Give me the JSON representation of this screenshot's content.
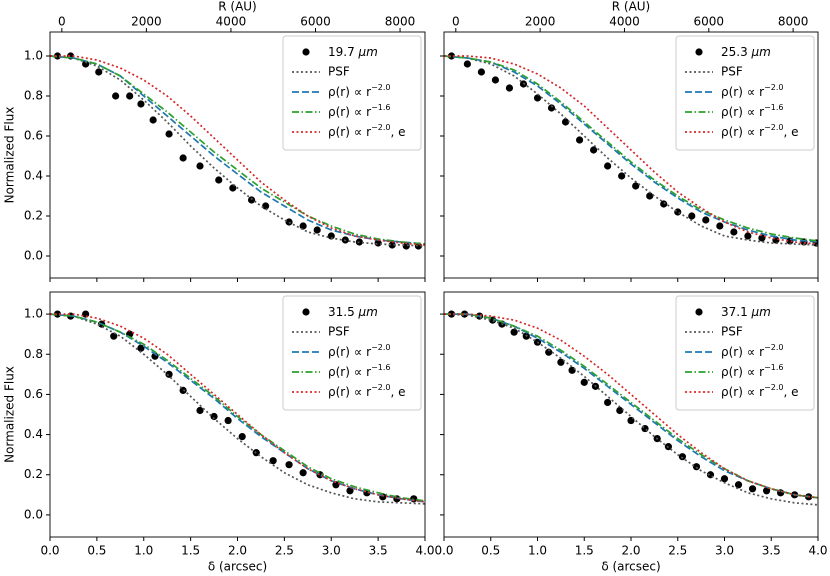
{
  "chart_data": [
    {
      "type": "line",
      "x2label": "R (AU)",
      "ylabel": "Normalized Flux",
      "ytick_labels": true,
      "xtick_labels": false,
      "xlim": [
        0,
        4
      ],
      "ylim": [
        -0.11,
        1.12
      ],
      "x2lim": [
        -280,
        8590
      ],
      "xticks": [
        {
          "value": 0,
          "label": "0.0"
        },
        0.5,
        {
          "value": 1,
          "label": "1.0"
        },
        1.5,
        {
          "value": 2,
          "label": "2.0"
        },
        2.5,
        {
          "value": 3,
          "label": "3.0"
        },
        3.5,
        {
          "value": 4,
          "label": "4.0"
        }
      ],
      "yticks": [
        {
          "value": 0,
          "label": "0.0"
        },
        0.2,
        0.4,
        0.6,
        0.8,
        {
          "value": 1,
          "label": "1.0"
        }
      ],
      "x2ticks": [
        0,
        2000,
        4000,
        6000,
        8000
      ],
      "x": [
        0,
        0.25,
        0.5,
        0.75,
        1,
        1.25,
        1.5,
        1.75,
        2,
        2.25,
        2.5,
        2.75,
        3,
        3.25,
        3.5,
        3.75,
        4
      ],
      "series": [
        {
          "name": {
            "text": "19.7 ",
            "unit": "μm"
          },
          "color": "#000000",
          "style": "points",
          "x": [
            0.08,
            0.22,
            0.38,
            0.52,
            0.7,
            0.85,
            0.97,
            1.1,
            1.27,
            1.42,
            1.6,
            1.8,
            1.95,
            2.15,
            2.3,
            2.55,
            2.7,
            2.85,
            3.0,
            3.15,
            3.3,
            3.5,
            3.65,
            3.8,
            3.93
          ],
          "values": [
            1.0,
            1.0,
            0.96,
            0.92,
            0.8,
            0.8,
            0.76,
            0.68,
            0.61,
            0.49,
            0.45,
            0.38,
            0.34,
            0.28,
            0.25,
            0.17,
            0.15,
            0.13,
            0.1,
            0.08,
            0.07,
            0.065,
            0.055,
            0.05,
            0.05
          ]
        },
        {
          "name": "PSF",
          "color": "#555555",
          "style": "dotted",
          "values": [
            1.0,
            0.99,
            0.95,
            0.88,
            0.78,
            0.67,
            0.55,
            0.44,
            0.34,
            0.25,
            0.18,
            0.12,
            0.09,
            0.07,
            0.06,
            0.055,
            0.05
          ]
        },
        {
          "name": {
            "text": "ρ(r) ∝ r",
            "sup": "−2.0"
          },
          "color": "#1f77b4",
          "style": "dashed",
          "values": [
            1.0,
            0.99,
            0.96,
            0.9,
            0.8,
            0.7,
            0.6,
            0.5,
            0.41,
            0.32,
            0.25,
            0.18,
            0.13,
            0.1,
            0.08,
            0.07,
            0.06
          ]
        },
        {
          "name": {
            "text": "ρ(r) ∝ r",
            "sup": "−1.6"
          },
          "color": "#2ca02c",
          "style": "dashdot",
          "values": [
            1.0,
            0.99,
            0.96,
            0.9,
            0.81,
            0.72,
            0.62,
            0.52,
            0.43,
            0.34,
            0.27,
            0.2,
            0.15,
            0.11,
            0.085,
            0.07,
            0.06
          ]
        },
        {
          "name": {
            "text": "ρ(r) ∝ r",
            "sup": "−2.0",
            "after": ", e"
          },
          "color": "#d62728",
          "style": "dotted",
          "values": [
            1.0,
            1.0,
            0.98,
            0.94,
            0.88,
            0.8,
            0.7,
            0.59,
            0.48,
            0.37,
            0.28,
            0.2,
            0.14,
            0.1,
            0.08,
            0.065,
            0.055
          ]
        }
      ]
    },
    {
      "type": "line",
      "x2label": "R (AU)",
      "ytick_labels": false,
      "xtick_labels": false,
      "xlim": [
        0,
        4
      ],
      "ylim": [
        -0.11,
        1.12
      ],
      "x2lim": [
        -280,
        8590
      ],
      "xticks": [
        {
          "value": 0,
          "label": "0.0"
        },
        0.5,
        {
          "value": 1,
          "label": "1.0"
        },
        1.5,
        {
          "value": 2,
          "label": "2.0"
        },
        2.5,
        {
          "value": 3,
          "label": "3.0"
        },
        3.5,
        {
          "value": 4,
          "label": "4.0"
        }
      ],
      "yticks": [
        {
          "value": 0,
          "label": "0.0"
        },
        0.2,
        0.4,
        0.6,
        0.8,
        {
          "value": 1,
          "label": "1.0"
        }
      ],
      "x2ticks": [
        0,
        2000,
        4000,
        6000,
        8000
      ],
      "x": [
        0,
        0.25,
        0.5,
        0.75,
        1,
        1.25,
        1.5,
        1.75,
        2,
        2.25,
        2.5,
        2.75,
        3,
        3.25,
        3.5,
        3.75,
        4
      ],
      "series": [
        {
          "name": {
            "text": "25.3 ",
            "unit": "μm"
          },
          "color": "#000000",
          "style": "points",
          "x": [
            0.08,
            0.25,
            0.4,
            0.55,
            0.7,
            0.85,
            1.0,
            1.15,
            1.3,
            1.45,
            1.6,
            1.75,
            1.9,
            2.05,
            2.2,
            2.35,
            2.5,
            2.65,
            2.8,
            2.95,
            3.1,
            3.25,
            3.4,
            3.55,
            3.7,
            3.85,
            3.98
          ],
          "values": [
            1.0,
            0.96,
            0.92,
            0.88,
            0.84,
            0.86,
            0.79,
            0.74,
            0.67,
            0.58,
            0.53,
            0.45,
            0.4,
            0.35,
            0.3,
            0.26,
            0.22,
            0.2,
            0.18,
            0.15,
            0.12,
            0.1,
            0.09,
            0.08,
            0.075,
            0.07,
            0.065
          ]
        },
        {
          "name": "PSF",
          "color": "#555555",
          "style": "dotted",
          "values": [
            1.0,
            0.99,
            0.96,
            0.9,
            0.81,
            0.71,
            0.6,
            0.49,
            0.39,
            0.3,
            0.22,
            0.15,
            0.1,
            0.08,
            0.065,
            0.06,
            0.055
          ]
        },
        {
          "name": {
            "text": "ρ(r) ∝ r",
            "sup": "−2.0"
          },
          "color": "#1f77b4",
          "style": "dashed",
          "values": [
            1.0,
            0.99,
            0.97,
            0.92,
            0.85,
            0.76,
            0.66,
            0.56,
            0.46,
            0.37,
            0.29,
            0.22,
            0.17,
            0.13,
            0.1,
            0.08,
            0.07
          ]
        },
        {
          "name": {
            "text": "ρ(r) ∝ r",
            "sup": "−1.6"
          },
          "color": "#2ca02c",
          "style": "dashdot",
          "values": [
            1.0,
            0.99,
            0.97,
            0.93,
            0.86,
            0.77,
            0.67,
            0.57,
            0.47,
            0.38,
            0.3,
            0.23,
            0.18,
            0.14,
            0.11,
            0.09,
            0.075
          ]
        },
        {
          "name": {
            "text": "ρ(r) ∝ r",
            "sup": "−2.0",
            "after": ", e"
          },
          "color": "#d62728",
          "style": "dotted",
          "values": [
            1.0,
            1.0,
            0.99,
            0.96,
            0.91,
            0.84,
            0.75,
            0.64,
            0.53,
            0.42,
            0.32,
            0.24,
            0.17,
            0.12,
            0.09,
            0.07,
            0.06
          ]
        }
      ]
    },
    {
      "type": "line",
      "xlabel": "δ (arcsec)",
      "ylabel": "Normalized Flux",
      "ytick_labels": true,
      "xtick_labels": true,
      "xlim": [
        0,
        4
      ],
      "ylim": [
        -0.11,
        1.11
      ],
      "xticks": [
        {
          "value": 0,
          "label": "0.0"
        },
        0.5,
        {
          "value": 1,
          "label": "1.0"
        },
        1.5,
        {
          "value": 2,
          "label": "2.0"
        },
        2.5,
        {
          "value": 3,
          "label": "3.0"
        },
        3.5,
        {
          "value": 4,
          "label": "4.0"
        }
      ],
      "yticks": [
        {
          "value": 0,
          "label": "0.0"
        },
        0.2,
        0.4,
        0.6,
        0.8,
        {
          "value": 1,
          "label": "1.0"
        }
      ],
      "x": [
        0,
        0.25,
        0.5,
        0.75,
        1,
        1.25,
        1.5,
        1.75,
        2,
        2.25,
        2.5,
        2.75,
        3,
        3.25,
        3.5,
        3.75,
        4
      ],
      "series": [
        {
          "name": {
            "text": "31.5 ",
            "unit": "μm"
          },
          "color": "#000000",
          "style": "points",
          "x": [
            0.08,
            0.22,
            0.38,
            0.55,
            0.68,
            0.85,
            0.97,
            1.12,
            1.27,
            1.42,
            1.6,
            1.75,
            1.9,
            2.05,
            2.2,
            2.38,
            2.55,
            2.7,
            2.88,
            3.05,
            3.2,
            3.38,
            3.55,
            3.7,
            3.88
          ],
          "values": [
            1.0,
            0.99,
            1.0,
            0.95,
            0.89,
            0.9,
            0.83,
            0.79,
            0.7,
            0.62,
            0.52,
            0.49,
            0.47,
            0.39,
            0.31,
            0.27,
            0.25,
            0.21,
            0.2,
            0.15,
            0.12,
            0.11,
            0.09,
            0.08,
            0.08
          ]
        },
        {
          "name": "PSF",
          "color": "#555555",
          "style": "dotted",
          "values": [
            1.0,
            0.99,
            0.95,
            0.89,
            0.8,
            0.7,
            0.59,
            0.48,
            0.38,
            0.29,
            0.21,
            0.15,
            0.11,
            0.08,
            0.065,
            0.06,
            0.055
          ]
        },
        {
          "name": {
            "text": "ρ(r) ∝ r",
            "sup": "−2.0"
          },
          "color": "#1f77b4",
          "style": "dashed",
          "values": [
            1.0,
            0.99,
            0.96,
            0.91,
            0.84,
            0.76,
            0.67,
            0.58,
            0.48,
            0.39,
            0.31,
            0.23,
            0.17,
            0.13,
            0.1,
            0.08,
            0.065
          ]
        },
        {
          "name": {
            "text": "ρ(r) ∝ r",
            "sup": "−1.6"
          },
          "color": "#2ca02c",
          "style": "dashdot",
          "values": [
            1.0,
            0.99,
            0.96,
            0.91,
            0.85,
            0.77,
            0.68,
            0.59,
            0.49,
            0.4,
            0.32,
            0.24,
            0.18,
            0.14,
            0.11,
            0.085,
            0.07
          ]
        },
        {
          "name": {
            "text": "ρ(r) ∝ r",
            "sup": "−2.0",
            "after": ", e"
          },
          "color": "#d62728",
          "style": "dotted",
          "values": [
            1.0,
            1.0,
            0.98,
            0.94,
            0.88,
            0.8,
            0.7,
            0.6,
            0.5,
            0.4,
            0.31,
            0.23,
            0.17,
            0.13,
            0.1,
            0.08,
            0.065
          ]
        }
      ]
    },
    {
      "type": "line",
      "xlabel": "δ (arcsec)",
      "ytick_labels": false,
      "xtick_labels": true,
      "xlim": [
        0,
        4
      ],
      "ylim": [
        -0.11,
        1.11
      ],
      "xticks": [
        {
          "value": 0,
          "label": "0.0"
        },
        0.5,
        {
          "value": 1,
          "label": "1.0"
        },
        1.5,
        {
          "value": 2,
          "label": "2.0"
        },
        2.5,
        {
          "value": 3,
          "label": "3.0"
        },
        3.5,
        {
          "value": 4,
          "label": "4.0"
        }
      ],
      "yticks": [
        {
          "value": 0,
          "label": "0.0"
        },
        0.2,
        0.4,
        0.6,
        0.8,
        {
          "value": 1,
          "label": "1.0"
        }
      ],
      "x": [
        0,
        0.25,
        0.5,
        0.75,
        1,
        1.25,
        1.5,
        1.75,
        2,
        2.25,
        2.5,
        2.75,
        3,
        3.25,
        3.5,
        3.75,
        4
      ],
      "series": [
        {
          "name": {
            "text": "37.1 ",
            "unit": "μm"
          },
          "color": "#000000",
          "style": "points",
          "x": [
            0.08,
            0.22,
            0.38,
            0.52,
            0.62,
            0.75,
            0.88,
            1.0,
            1.12,
            1.25,
            1.37,
            1.5,
            1.62,
            1.75,
            1.88,
            2.0,
            2.15,
            2.28,
            2.4,
            2.55,
            2.7,
            2.85,
            3.0,
            3.15,
            3.3,
            3.45,
            3.6,
            3.75,
            3.9
          ],
          "values": [
            1.0,
            1.0,
            0.99,
            0.97,
            0.95,
            0.91,
            0.89,
            0.86,
            0.81,
            0.76,
            0.72,
            0.66,
            0.64,
            0.56,
            0.52,
            0.47,
            0.43,
            0.38,
            0.34,
            0.29,
            0.24,
            0.2,
            0.18,
            0.15,
            0.13,
            0.12,
            0.11,
            0.1,
            0.09
          ]
        },
        {
          "name": "PSF",
          "color": "#555555",
          "style": "dotted",
          "values": [
            1.0,
            0.995,
            0.97,
            0.93,
            0.86,
            0.78,
            0.69,
            0.59,
            0.49,
            0.39,
            0.3,
            0.22,
            0.16,
            0.11,
            0.08,
            0.06,
            0.05
          ]
        },
        {
          "name": {
            "text": "ρ(r) ∝ r",
            "sup": "−2.0"
          },
          "color": "#1f77b4",
          "style": "dashed",
          "values": [
            1.0,
            1.0,
            0.98,
            0.94,
            0.88,
            0.81,
            0.73,
            0.64,
            0.55,
            0.46,
            0.37,
            0.29,
            0.22,
            0.17,
            0.13,
            0.1,
            0.085
          ]
        },
        {
          "name": {
            "text": "ρ(r) ∝ r",
            "sup": "−1.6"
          },
          "color": "#2ca02c",
          "style": "dashdot",
          "values": [
            1.0,
            1.0,
            0.98,
            0.94,
            0.89,
            0.82,
            0.74,
            0.65,
            0.56,
            0.47,
            0.38,
            0.3,
            0.23,
            0.17,
            0.13,
            0.1,
            0.085
          ]
        },
        {
          "name": {
            "text": "ρ(r) ∝ r",
            "sup": "−2.0",
            "after": ", e"
          },
          "color": "#d62728",
          "style": "dotted",
          "values": [
            1.0,
            1.0,
            0.99,
            0.97,
            0.93,
            0.87,
            0.79,
            0.7,
            0.6,
            0.5,
            0.4,
            0.31,
            0.23,
            0.17,
            0.13,
            0.1,
            0.085
          ]
        }
      ]
    }
  ]
}
